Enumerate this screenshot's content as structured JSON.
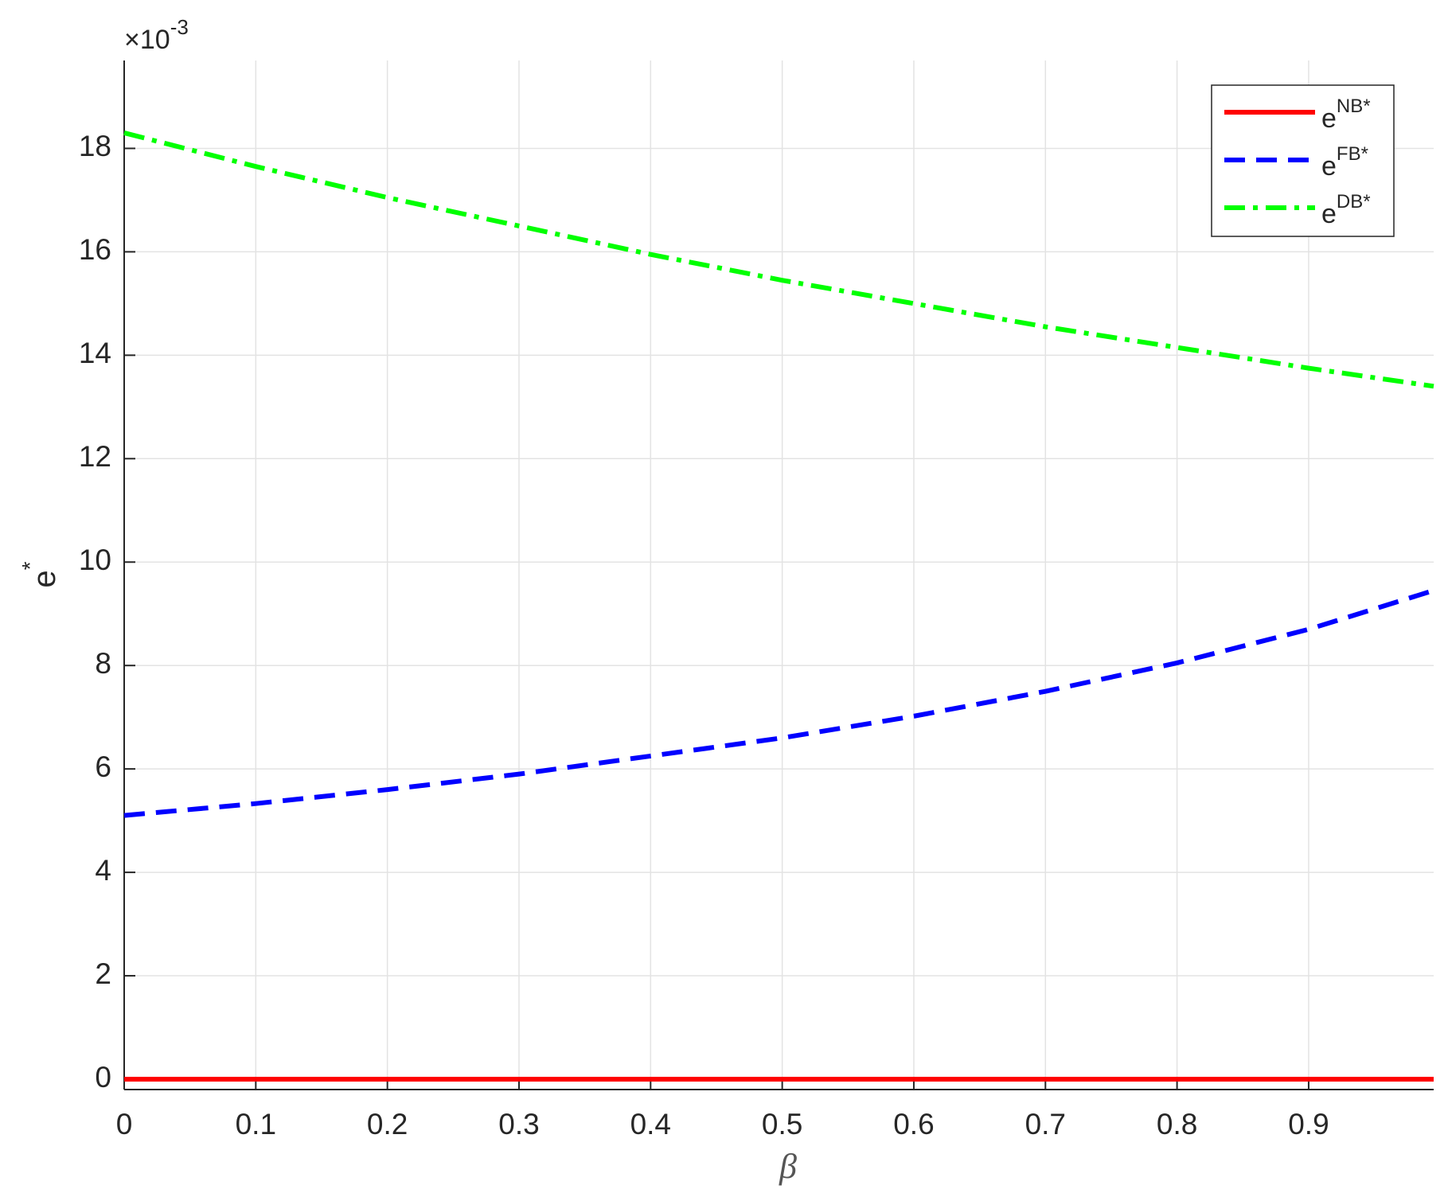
{
  "chart_data": {
    "type": "line",
    "xlabel": "β",
    "ylabel": "e",
    "ylabel_superscript": "*",
    "y_exponent": "×10",
    "y_exponent_power": "-3",
    "x": [
      0,
      0.1,
      0.2,
      0.3,
      0.4,
      0.5,
      0.6,
      0.7,
      0.8,
      0.9,
      0.995
    ],
    "series": [
      {
        "name": "e",
        "name_superscript": "NB*",
        "color": "#ff0000",
        "style": "solid",
        "values": [
          0,
          0,
          0,
          0,
          0,
          0,
          0,
          0,
          0,
          0,
          0
        ]
      },
      {
        "name": "e",
        "name_superscript": "FB*",
        "color": "#0000ff",
        "style": "dashed",
        "values": [
          5.1,
          5.33,
          5.6,
          5.9,
          6.25,
          6.6,
          7.02,
          7.5,
          8.05,
          8.7,
          9.45
        ]
      },
      {
        "name": "e",
        "name_superscript": "DB*",
        "color": "#00ff00",
        "style": "dashdot",
        "values": [
          18.3,
          17.65,
          17.05,
          16.5,
          15.95,
          15.45,
          15.0,
          14.55,
          14.15,
          13.75,
          13.4
        ]
      }
    ],
    "xlim": [
      0,
      0.995
    ],
    "ylim": [
      -0.2,
      19.7
    ],
    "xticks": [
      0,
      0.1,
      0.2,
      0.3,
      0.4,
      0.5,
      0.6,
      0.7,
      0.8,
      0.9
    ],
    "yticks": [
      0,
      2,
      4,
      6,
      8,
      10,
      12,
      14,
      16,
      18
    ],
    "grid": true,
    "legend": "top-right"
  }
}
